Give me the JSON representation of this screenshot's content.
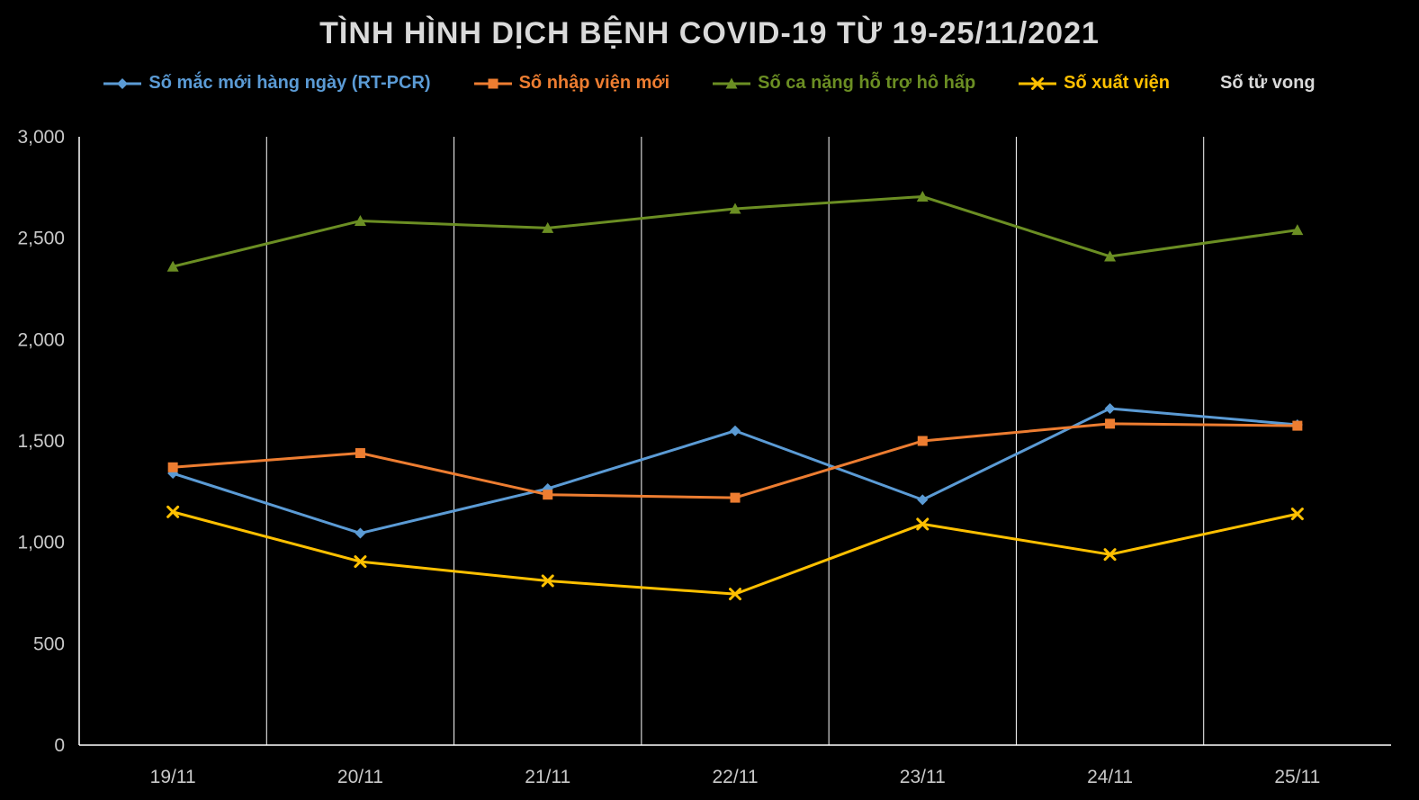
{
  "chart_data": {
    "type": "line",
    "title": "TÌNH HÌNH DỊCH BỆNH COVID-19 TỪ 19-25/11/2021",
    "xlabel": "",
    "ylabel": "",
    "categories": [
      "19/11",
      "20/11",
      "21/11",
      "22/11",
      "23/11",
      "24/11",
      "25/11"
    ],
    "ylim": [
      0,
      3000
    ],
    "yticks": [
      0,
      500,
      1000,
      1500,
      2000,
      2500,
      3000
    ],
    "ytick_labels": [
      "0",
      "500",
      "1,000",
      "1,500",
      "2,000",
      "2,500",
      "3,000"
    ],
    "grid": "vertical-only",
    "legend_position": "top",
    "background_color": "#000000",
    "axis_color": "#FFFFFF",
    "text_color": "#C9C9C9",
    "series": [
      {
        "name": "Số mắc mới hàng ngày (RT-PCR)",
        "color": "#5B9BD5",
        "marker": "diamond",
        "values": [
          1340,
          1045,
          1265,
          1550,
          1210,
          1660,
          1580
        ]
      },
      {
        "name": "Số nhập viện mới",
        "color": "#ED7D31",
        "marker": "square",
        "values": [
          1370,
          1440,
          1235,
          1220,
          1500,
          1585,
          1575
        ]
      },
      {
        "name": "Số ca nặng hỗ trợ hô hấp",
        "color": "#6B8E23",
        "marker": "triangle",
        "values": [
          2360,
          2585,
          2550,
          2645,
          2705,
          2410,
          2540
        ]
      },
      {
        "name": "Số xuất viện",
        "color": "#FFC000",
        "marker": "x",
        "values": [
          1150,
          905,
          810,
          745,
          1090,
          940,
          1140
        ]
      },
      {
        "name": "Số tử vong",
        "color": "#D9D9D9",
        "marker": "none",
        "values": []
      }
    ]
  }
}
